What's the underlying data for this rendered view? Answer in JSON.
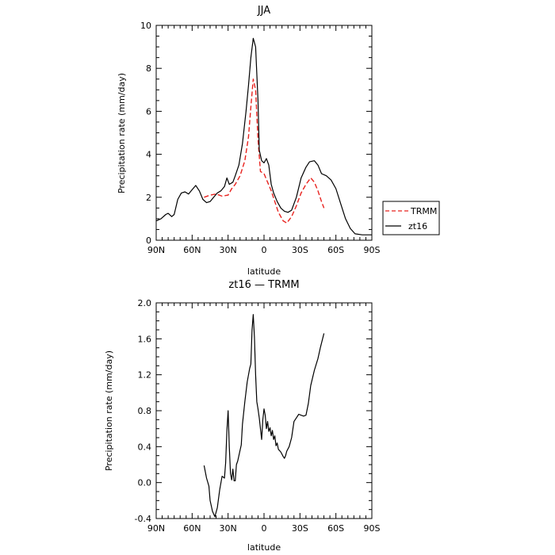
{
  "chart_data": [
    {
      "type": "line",
      "title": "JJA",
      "xlabel": "latitude",
      "ylabel": "Precipitation rate (mm/day)",
      "xlim": [
        90,
        -90
      ],
      "ylim": [
        0,
        10
      ],
      "xticks": [
        90,
        60,
        30,
        0,
        -30,
        -60,
        -90
      ],
      "xtick_labels": [
        "90N",
        "60N",
        "30N",
        "0",
        "30S",
        "60S",
        "90S"
      ],
      "yticks": [
        0,
        2,
        4,
        6,
        8,
        10
      ],
      "ytick_labels": [
        "0",
        "2",
        "4",
        "6",
        "8",
        "10"
      ],
      "legend_position": "right",
      "series": [
        {
          "name": "TRMM",
          "color": "#e8231f",
          "style": "dashed",
          "points": [
            [
              50,
              2.0
            ],
            [
              45,
              2.1
            ],
            [
              40,
              2.15
            ],
            [
              35,
              2.05
            ],
            [
              30,
              2.1
            ],
            [
              27,
              2.4
            ],
            [
              24,
              2.6
            ],
            [
              20,
              3.0
            ],
            [
              16,
              3.7
            ],
            [
              13,
              4.8
            ],
            [
              11,
              6.2
            ],
            [
              9,
              7.5
            ],
            [
              7,
              7.0
            ],
            [
              5,
              4.7
            ],
            [
              3,
              3.2
            ],
            [
              0,
              3.1
            ],
            [
              -3,
              2.7
            ],
            [
              -6,
              2.3
            ],
            [
              -9,
              1.8
            ],
            [
              -12,
              1.3
            ],
            [
              -16,
              0.9
            ],
            [
              -19,
              0.8
            ],
            [
              -23,
              1.1
            ],
            [
              -27,
              1.6
            ],
            [
              -31,
              2.2
            ],
            [
              -35,
              2.6
            ],
            [
              -39,
              2.9
            ],
            [
              -42,
              2.7
            ],
            [
              -45,
              2.3
            ],
            [
              -48,
              1.8
            ],
            [
              -50,
              1.5
            ]
          ]
        },
        {
          "name": "zt16",
          "color": "#000000",
          "style": "solid",
          "points": [
            [
              90,
              0.9
            ],
            [
              86,
              1.0
            ],
            [
              82,
              1.2
            ],
            [
              80,
              1.25
            ],
            [
              77,
              1.1
            ],
            [
              75,
              1.2
            ],
            [
              72,
              1.9
            ],
            [
              69,
              2.2
            ],
            [
              66,
              2.25
            ],
            [
              63,
              2.15
            ],
            [
              60,
              2.35
            ],
            [
              57,
              2.55
            ],
            [
              54,
              2.3
            ],
            [
              51,
              1.9
            ],
            [
              48,
              1.75
            ],
            [
              45,
              1.8
            ],
            [
              42,
              2.0
            ],
            [
              39,
              2.2
            ],
            [
              36,
              2.3
            ],
            [
              33,
              2.5
            ],
            [
              31,
              2.9
            ],
            [
              29,
              2.6
            ],
            [
              26,
              2.7
            ],
            [
              24,
              3.0
            ],
            [
              21,
              3.5
            ],
            [
              18,
              4.5
            ],
            [
              15,
              6.0
            ],
            [
              13,
              7.2
            ],
            [
              11,
              8.5
            ],
            [
              9,
              9.4
            ],
            [
              7,
              9.0
            ],
            [
              5,
              6.5
            ],
            [
              4,
              4.2
            ],
            [
              2,
              3.7
            ],
            [
              0,
              3.6
            ],
            [
              -2,
              3.8
            ],
            [
              -4,
              3.5
            ],
            [
              -6,
              2.6
            ],
            [
              -8,
              2.2
            ],
            [
              -11,
              1.8
            ],
            [
              -14,
              1.5
            ],
            [
              -17,
              1.35
            ],
            [
              -20,
              1.3
            ],
            [
              -23,
              1.4
            ],
            [
              -27,
              2.0
            ],
            [
              -31,
              2.9
            ],
            [
              -35,
              3.4
            ],
            [
              -38,
              3.65
            ],
            [
              -42,
              3.7
            ],
            [
              -45,
              3.5
            ],
            [
              -48,
              3.1
            ],
            [
              -52,
              3.0
            ],
            [
              -56,
              2.8
            ],
            [
              -60,
              2.4
            ],
            [
              -64,
              1.7
            ],
            [
              -68,
              1.0
            ],
            [
              -72,
              0.55
            ],
            [
              -76,
              0.3
            ],
            [
              -82,
              0.25
            ],
            [
              -90,
              0.25
            ]
          ]
        }
      ]
    },
    {
      "type": "line",
      "title": "zt16 — TRMM",
      "xlabel": "latitude",
      "ylabel": "Precipitation rate (mm/day)",
      "xlim": [
        90,
        -90
      ],
      "ylim": [
        -0.4,
        2.0
      ],
      "xticks": [
        90,
        60,
        30,
        0,
        -30,
        -60,
        -90
      ],
      "xtick_labels": [
        "90N",
        "60N",
        "30N",
        "0",
        "30S",
        "60S",
        "90S"
      ],
      "yticks": [
        -0.4,
        0.0,
        0.4,
        0.8,
        1.2,
        1.6,
        2.0
      ],
      "ytick_labels": [
        "-0.4",
        "0.0",
        "0.4",
        "0.8",
        "1.2",
        "1.6",
        "2.0"
      ],
      "series": [
        {
          "color": "#000000",
          "style": "solid",
          "points": [
            [
              50,
              0.19
            ],
            [
              48,
              0.05
            ],
            [
              46,
              -0.04
            ],
            [
              45,
              -0.2
            ],
            [
              43,
              -0.32
            ],
            [
              41,
              -0.38
            ],
            [
              39,
              -0.28
            ],
            [
              37,
              -0.08
            ],
            [
              35,
              0.07
            ],
            [
              33,
              0.05
            ],
            [
              32,
              0.22
            ],
            [
              31,
              0.58
            ],
            [
              30,
              0.8
            ],
            [
              29,
              0.4
            ],
            [
              28,
              0.1
            ],
            [
              27,
              0.03
            ],
            [
              26,
              0.15
            ],
            [
              25,
              0.02
            ],
            [
              24,
              0.02
            ],
            [
              23,
              0.2
            ],
            [
              22,
              0.24
            ],
            [
              20,
              0.36
            ],
            [
              19,
              0.42
            ],
            [
              18,
              0.65
            ],
            [
              16,
              0.9
            ],
            [
              14,
              1.12
            ],
            [
              12,
              1.27
            ],
            [
              11,
              1.32
            ],
            [
              10,
              1.7
            ],
            [
              9,
              1.87
            ],
            [
              8,
              1.62
            ],
            [
              7,
              1.2
            ],
            [
              6,
              0.9
            ],
            [
              5,
              0.82
            ],
            [
              4,
              0.72
            ],
            [
              3,
              0.6
            ],
            [
              2,
              0.48
            ],
            [
              1,
              0.7
            ],
            [
              0,
              0.82
            ],
            [
              -1,
              0.75
            ],
            [
              -2,
              0.6
            ],
            [
              -3,
              0.68
            ],
            [
              -4,
              0.57
            ],
            [
              -5,
              0.61
            ],
            [
              -6,
              0.52
            ],
            [
              -7,
              0.58
            ],
            [
              -8,
              0.48
            ],
            [
              -9,
              0.52
            ],
            [
              -10,
              0.41
            ],
            [
              -11,
              0.44
            ],
            [
              -12,
              0.37
            ],
            [
              -14,
              0.34
            ],
            [
              -16,
              0.29
            ],
            [
              -17,
              0.27
            ],
            [
              -18,
              0.3
            ],
            [
              -19,
              0.35
            ],
            [
              -21,
              0.4
            ],
            [
              -23,
              0.5
            ],
            [
              -25,
              0.68
            ],
            [
              -27,
              0.72
            ],
            [
              -29,
              0.76
            ],
            [
              -31,
              0.75
            ],
            [
              -33,
              0.74
            ],
            [
              -35,
              0.75
            ],
            [
              -37,
              0.88
            ],
            [
              -39,
              1.08
            ],
            [
              -42,
              1.25
            ],
            [
              -45,
              1.38
            ],
            [
              -47,
              1.5
            ],
            [
              -50,
              1.66
            ]
          ]
        }
      ]
    }
  ]
}
